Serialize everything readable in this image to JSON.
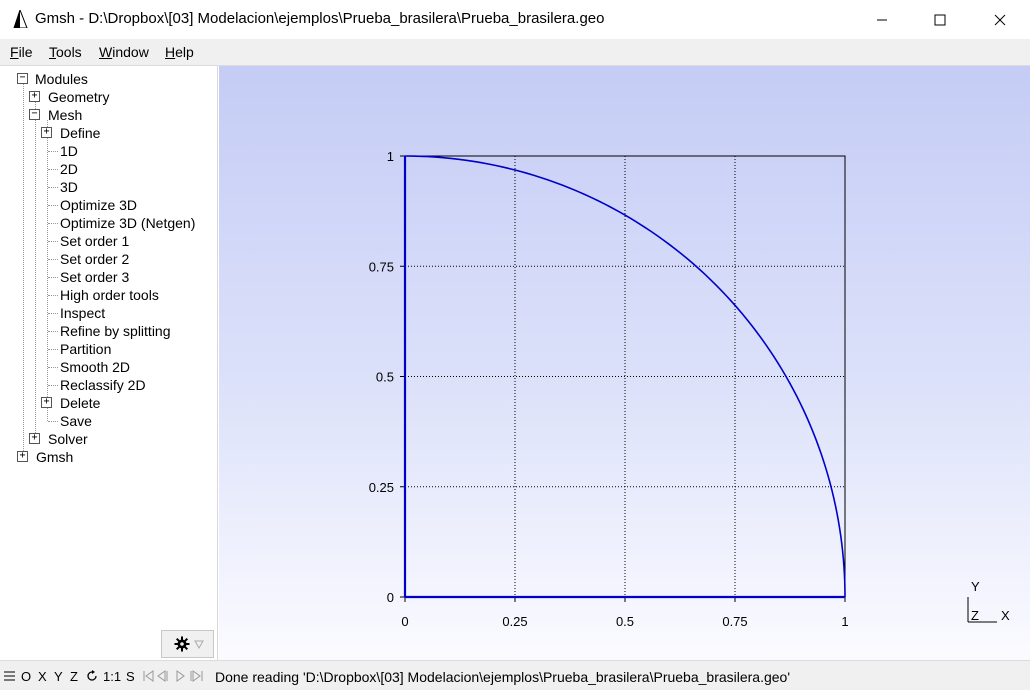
{
  "window": {
    "title": "Gmsh - D:\\Dropbox\\[03] Modelacion\\ejemplos\\Prueba_brasilera\\Prueba_brasilera.geo"
  },
  "menu": [
    "File",
    "Tools",
    "Window",
    "Help"
  ],
  "tree": {
    "modules": "Modules",
    "geometry": "Geometry",
    "mesh": "Mesh",
    "mesh_items": [
      "Define",
      "1D",
      "2D",
      "3D",
      "Optimize 3D",
      "Optimize 3D (Netgen)",
      "Set order 1",
      "Set order 2",
      "Set order 3",
      "High order tools",
      "Inspect",
      "Refine by splitting",
      "Partition",
      "Smooth 2D",
      "Reclassify 2D",
      "Delete",
      "Save"
    ],
    "solver": "Solver",
    "gmsh": "Gmsh"
  },
  "graphic": {
    "x_ticks": [
      "0",
      "0.25",
      "0.5",
      "0.75",
      "1"
    ],
    "y_ticks": [
      "0",
      "0.25",
      "0.5",
      "0.75",
      "1"
    ],
    "axes_labels": {
      "x": "X",
      "y": "Y",
      "z": "Z"
    },
    "curve_color": "#0000c8",
    "geometry": "quarter circle of radius 1 inside unit square"
  },
  "status": {
    "buttons": [
      "O",
      "X",
      "Y",
      "Z",
      "1:1",
      "S"
    ],
    "message": "Done reading 'D:\\Dropbox\\[03] Modelacion\\ejemplos\\Prueba_brasilera\\Prueba_brasilera.geo'"
  }
}
